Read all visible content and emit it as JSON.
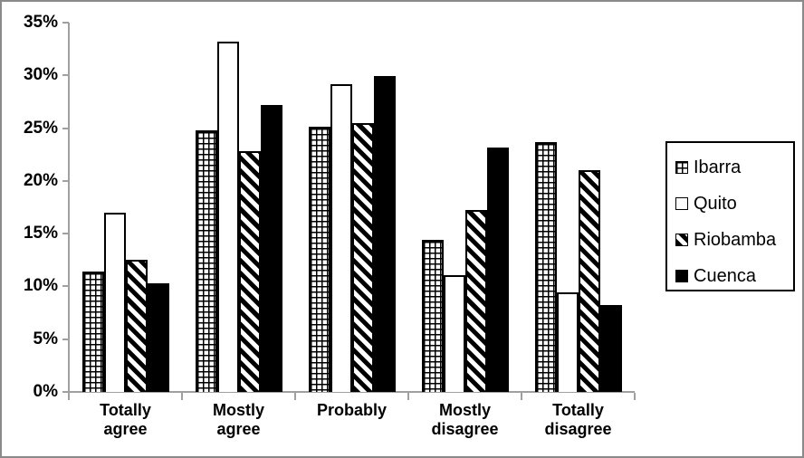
{
  "chart_data": {
    "type": "bar",
    "title": "",
    "xlabel": "",
    "ylabel": "",
    "categories": [
      "Totally agree",
      "Mostly agree",
      "Probably",
      "Mostly disagree",
      "Totally disagree"
    ],
    "series": [
      {
        "name": "Ibarra",
        "pattern": "grid",
        "values": [
          11.4,
          24.8,
          25.1,
          14.4,
          23.7
        ]
      },
      {
        "name": "Quito",
        "pattern": "solid-white",
        "values": [
          17.0,
          33.2,
          29.2,
          11.1,
          9.4
        ]
      },
      {
        "name": "Riobamba",
        "pattern": "diagonal-stripe",
        "values": [
          12.5,
          22.8,
          25.5,
          17.2,
          21.0
        ]
      },
      {
        "name": "Cuenca",
        "pattern": "solid-black",
        "values": [
          10.3,
          27.2,
          29.9,
          23.2,
          8.2
        ]
      }
    ],
    "y_axis": {
      "min": 0,
      "max": 35,
      "step": 5,
      "tick_labels": [
        "0%",
        "5%",
        "10%",
        "15%",
        "20%",
        "25%",
        "30%",
        "35%"
      ]
    },
    "legend": {
      "position": "right",
      "entries": [
        "Ibarra",
        "Quito",
        "Riobamba",
        "Cuenca"
      ]
    },
    "grid": false
  },
  "colors": {
    "background": "#ffffff",
    "frame_border": "#8a8a8a",
    "axis": "#a0a0a0",
    "bar_outline": "#000000",
    "text": "#000000",
    "bar_fill_solid": "#000000"
  }
}
